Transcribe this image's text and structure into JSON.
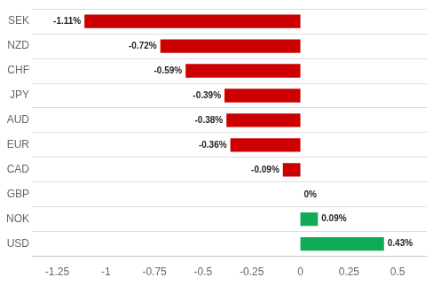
{
  "chart_data": {
    "type": "bar",
    "orientation": "horizontal",
    "categories": [
      "USD",
      "NOK",
      "GBP",
      "CAD",
      "EUR",
      "AUD",
      "JPY",
      "CHF",
      "NZD",
      "SEK"
    ],
    "values": [
      0.43,
      0.09,
      0.0,
      -0.09,
      -0.36,
      -0.38,
      -0.39,
      -0.59,
      -0.72,
      -1.11
    ],
    "value_labels": [
      "0.43%",
      "0.09%",
      "0%",
      "-0.09%",
      "-0.36%",
      "-0.38%",
      "-0.39%",
      "-0.59%",
      "-0.72%",
      "-1.11%"
    ],
    "colors": [
      "#11aa55",
      "#11aa55",
      "#ffffff",
      "#cc0000",
      "#cc0000",
      "#cc0000",
      "#cc0000",
      "#cc0000",
      "#cc0000",
      "#cc0000"
    ],
    "xlim": [
      -1.38,
      0.65
    ],
    "xticks": [
      -1.25,
      -1,
      -0.75,
      -0.5,
      -0.25,
      0,
      0.25,
      0.5
    ],
    "grid": true,
    "data_labels": true
  }
}
